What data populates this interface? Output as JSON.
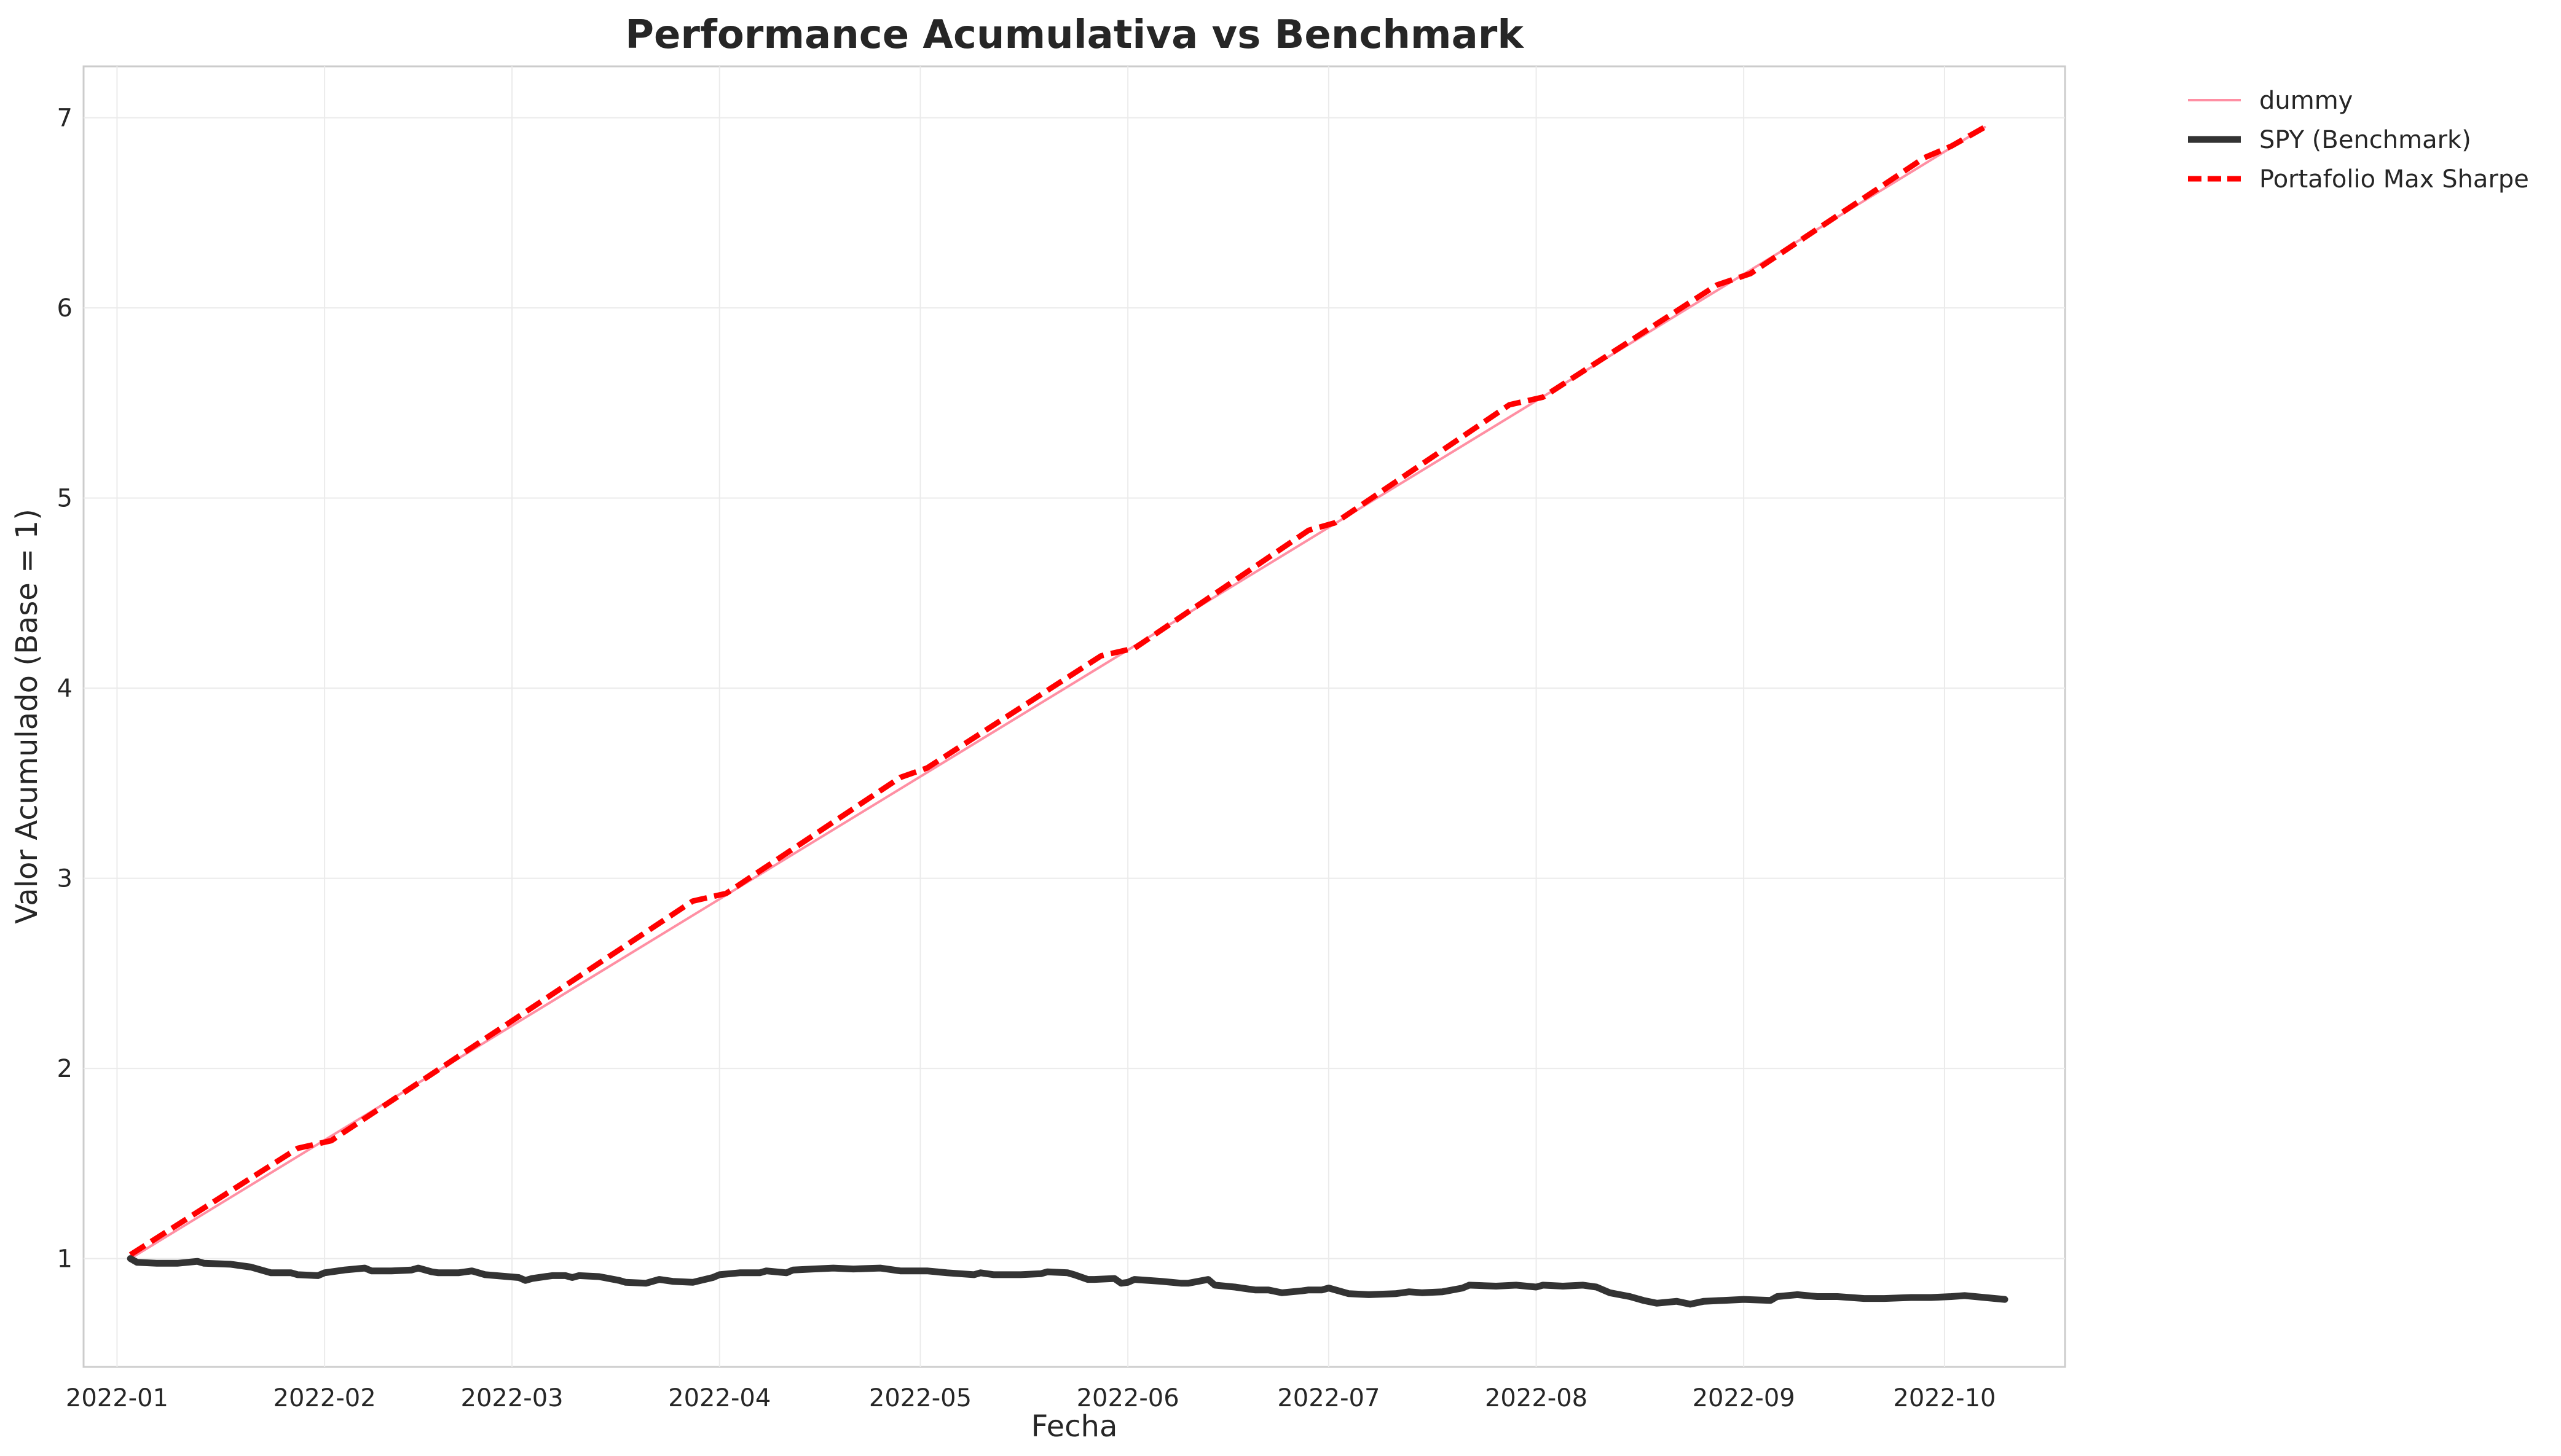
{
  "chart_data": {
    "type": "line",
    "title": "Performance Acumulativa vs Benchmark",
    "xlabel": "Fecha",
    "ylabel": "Valor Acumulado (Base = 1)",
    "x_ticks": [
      "2022-01",
      "2022-02",
      "2022-03",
      "2022-04",
      "2022-05",
      "2022-06",
      "2022-07",
      "2022-08",
      "2022-09",
      "2022-10"
    ],
    "y_ticks": [
      1,
      2,
      3,
      4,
      5,
      6,
      7
    ],
    "xlim": [
      "2021-12-27",
      "2022-10-19"
    ],
    "ylim": [
      0.43,
      7.27
    ],
    "grid": true,
    "legend_position": "outside-top-right",
    "series": [
      {
        "name": "dummy",
        "color": "#ff8fa3",
        "style": "solid-thin",
        "points": [
          [
            "2022-01-03",
            1.0
          ],
          [
            "2022-10-07",
            6.95
          ]
        ]
      },
      {
        "name": "SPY (Benchmark)",
        "color": "#333333",
        "style": "solid-thick",
        "points": [
          [
            "2022-01-03",
            1.0
          ],
          [
            "2022-01-04",
            0.98
          ],
          [
            "2022-01-07",
            0.975
          ],
          [
            "2022-01-10",
            0.975
          ],
          [
            "2022-01-13",
            0.985
          ],
          [
            "2022-01-14",
            0.975
          ],
          [
            "2022-01-18",
            0.97
          ],
          [
            "2022-01-21",
            0.955
          ],
          [
            "2022-01-24",
            0.925
          ],
          [
            "2022-01-27",
            0.925
          ],
          [
            "2022-01-28",
            0.915
          ],
          [
            "2022-01-31",
            0.91
          ],
          [
            "2022-02-01",
            0.925
          ],
          [
            "2022-02-04",
            0.94
          ],
          [
            "2022-02-07",
            0.95
          ],
          [
            "2022-02-08",
            0.935
          ],
          [
            "2022-02-11",
            0.935
          ],
          [
            "2022-02-14",
            0.94
          ],
          [
            "2022-02-15",
            0.95
          ],
          [
            "2022-02-17",
            0.93
          ],
          [
            "2022-02-18",
            0.925
          ],
          [
            "2022-02-21",
            0.925
          ],
          [
            "2022-02-23",
            0.935
          ],
          [
            "2022-02-25",
            0.915
          ],
          [
            "2022-03-02",
            0.9
          ],
          [
            "2022-03-03",
            0.885
          ],
          [
            "2022-03-04",
            0.895
          ],
          [
            "2022-03-07",
            0.91
          ],
          [
            "2022-03-09",
            0.91
          ],
          [
            "2022-03-10",
            0.9
          ],
          [
            "2022-03-11",
            0.91
          ],
          [
            "2022-03-14",
            0.905
          ],
          [
            "2022-03-17",
            0.885
          ],
          [
            "2022-03-18",
            0.875
          ],
          [
            "2022-03-21",
            0.87
          ],
          [
            "2022-03-23",
            0.89
          ],
          [
            "2022-03-25",
            0.88
          ],
          [
            "2022-03-28",
            0.875
          ],
          [
            "2022-03-31",
            0.9
          ],
          [
            "2022-04-01",
            0.915
          ],
          [
            "2022-04-04",
            0.925
          ],
          [
            "2022-04-07",
            0.925
          ],
          [
            "2022-04-08",
            0.935
          ],
          [
            "2022-04-11",
            0.925
          ],
          [
            "2022-04-12",
            0.94
          ],
          [
            "2022-04-15",
            0.945
          ],
          [
            "2022-04-18",
            0.95
          ],
          [
            "2022-04-21",
            0.945
          ],
          [
            "2022-04-25",
            0.95
          ],
          [
            "2022-04-28",
            0.935
          ],
          [
            "2022-05-02",
            0.935
          ],
          [
            "2022-05-05",
            0.925
          ],
          [
            "2022-05-09",
            0.915
          ],
          [
            "2022-05-10",
            0.925
          ],
          [
            "2022-05-12",
            0.915
          ],
          [
            "2022-05-16",
            0.915
          ],
          [
            "2022-05-19",
            0.92
          ],
          [
            "2022-05-20",
            0.93
          ],
          [
            "2022-05-23",
            0.925
          ],
          [
            "2022-05-24",
            0.915
          ],
          [
            "2022-05-26",
            0.89
          ],
          [
            "2022-05-27",
            0.89
          ],
          [
            "2022-05-30",
            0.895
          ],
          [
            "2022-05-31",
            0.87
          ],
          [
            "2022-06-01",
            0.875
          ],
          [
            "2022-06-02",
            0.89
          ],
          [
            "2022-06-06",
            0.88
          ],
          [
            "2022-06-09",
            0.87
          ],
          [
            "2022-06-10",
            0.87
          ],
          [
            "2022-06-13",
            0.89
          ],
          [
            "2022-06-14",
            0.86
          ],
          [
            "2022-06-17",
            0.85
          ],
          [
            "2022-06-20",
            0.835
          ],
          [
            "2022-06-22",
            0.835
          ],
          [
            "2022-06-24",
            0.82
          ],
          [
            "2022-06-27",
            0.83
          ],
          [
            "2022-06-28",
            0.835
          ],
          [
            "2022-06-30",
            0.835
          ],
          [
            "2022-07-01",
            0.845
          ],
          [
            "2022-07-04",
            0.815
          ],
          [
            "2022-07-07",
            0.81
          ],
          [
            "2022-07-11",
            0.815
          ],
          [
            "2022-07-13",
            0.825
          ],
          [
            "2022-07-15",
            0.82
          ],
          [
            "2022-07-18",
            0.825
          ],
          [
            "2022-07-21",
            0.845
          ],
          [
            "2022-07-22",
            0.86
          ],
          [
            "2022-07-26",
            0.855
          ],
          [
            "2022-07-29",
            0.86
          ],
          [
            "2022-08-01",
            0.85
          ],
          [
            "2022-08-02",
            0.86
          ],
          [
            "2022-08-05",
            0.855
          ],
          [
            "2022-08-08",
            0.86
          ],
          [
            "2022-08-10",
            0.85
          ],
          [
            "2022-08-12",
            0.82
          ],
          [
            "2022-08-15",
            0.8
          ],
          [
            "2022-08-17",
            0.78
          ],
          [
            "2022-08-19",
            0.765
          ],
          [
            "2022-08-22",
            0.775
          ],
          [
            "2022-08-24",
            0.76
          ],
          [
            "2022-08-26",
            0.775
          ],
          [
            "2022-08-29",
            0.78
          ],
          [
            "2022-09-01",
            0.785
          ],
          [
            "2022-09-05",
            0.78
          ],
          [
            "2022-09-06",
            0.8
          ],
          [
            "2022-09-09",
            0.81
          ],
          [
            "2022-09-12",
            0.8
          ],
          [
            "2022-09-15",
            0.8
          ],
          [
            "2022-09-19",
            0.79
          ],
          [
            "2022-09-22",
            0.79
          ],
          [
            "2022-09-26",
            0.795
          ],
          [
            "2022-09-29",
            0.795
          ],
          [
            "2022-10-02",
            0.8
          ],
          [
            "2022-10-04",
            0.805
          ],
          [
            "2022-10-07",
            0.795
          ],
          [
            "2022-10-10",
            0.785
          ]
        ]
      },
      {
        "name": "Portafolio Max Sharpe",
        "color": "#ff0000",
        "style": "dashed-thick",
        "points": [
          [
            "2022-01-03",
            1.02
          ],
          [
            "2022-01-28",
            1.58
          ],
          [
            "2022-02-02",
            1.62
          ],
          [
            "2022-03-28",
            2.88
          ],
          [
            "2022-04-02",
            2.92
          ],
          [
            "2022-04-28",
            3.53
          ],
          [
            "2022-05-02",
            3.58
          ],
          [
            "2022-05-28",
            4.17
          ],
          [
            "2022-06-02",
            4.21
          ],
          [
            "2022-06-28",
            4.83
          ],
          [
            "2022-07-02",
            4.87
          ],
          [
            "2022-07-28",
            5.49
          ],
          [
            "2022-08-02",
            5.53
          ],
          [
            "2022-08-28",
            6.12
          ],
          [
            "2022-09-02",
            6.18
          ],
          [
            "2022-09-28",
            6.79
          ],
          [
            "2022-10-02",
            6.85
          ],
          [
            "2022-10-07",
            6.95
          ]
        ]
      }
    ]
  }
}
